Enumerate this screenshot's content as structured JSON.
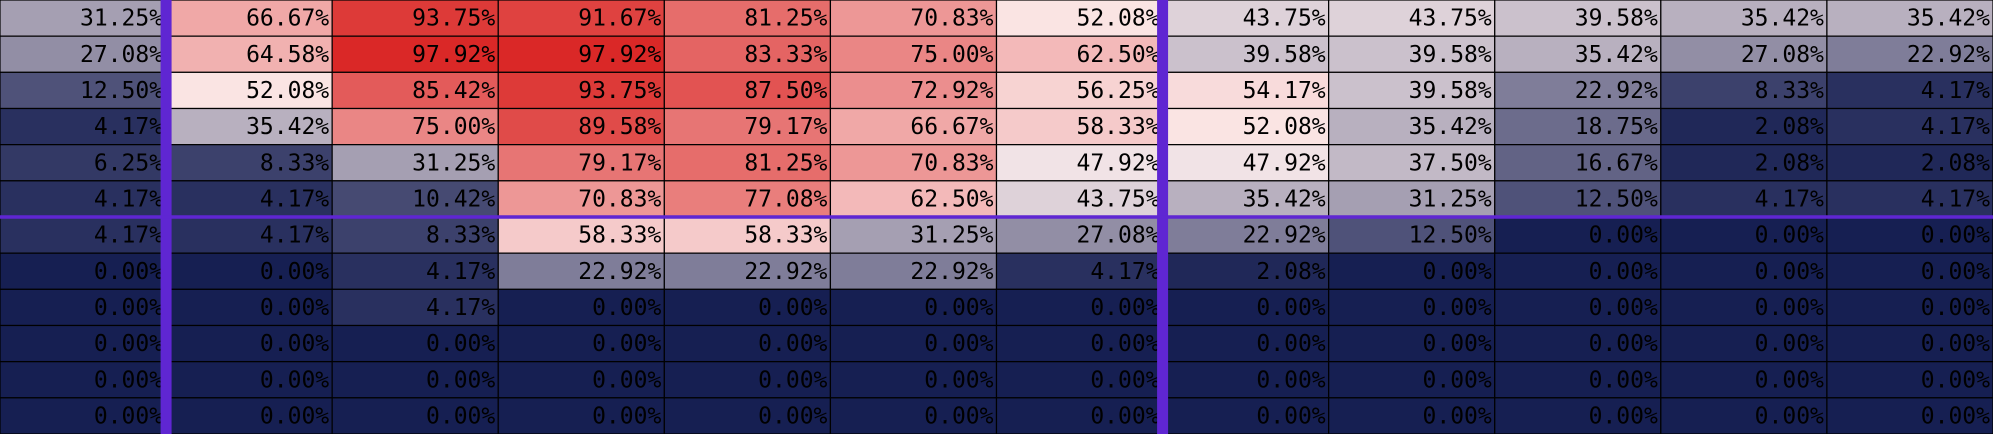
{
  "chart_data": {
    "type": "heatmap",
    "title": "",
    "xlabel": "",
    "ylabel": "",
    "value_format": "percent_2dp",
    "color_scale": {
      "low": "#161f52",
      "mid": "#fbecec",
      "high": "#d9201e",
      "mid_value": 50,
      "range": [
        0,
        100
      ]
    },
    "divider_color": "#5f26d2",
    "cell_border_color": "#000000",
    "text_color": "#000000",
    "dividers": {
      "after_columns": [
        1,
        7
      ],
      "after_rows": [
        6
      ]
    },
    "values": [
      [
        31.25,
        66.67,
        93.75,
        91.67,
        81.25,
        70.83,
        52.08,
        43.75,
        43.75,
        39.58,
        35.42,
        35.42
      ],
      [
        27.08,
        64.58,
        97.92,
        97.92,
        83.33,
        75.0,
        62.5,
        39.58,
        39.58,
        35.42,
        27.08,
        22.92
      ],
      [
        12.5,
        52.08,
        85.42,
        93.75,
        87.5,
        72.92,
        56.25,
        54.17,
        39.58,
        22.92,
        8.33,
        4.17
      ],
      [
        4.17,
        35.42,
        75.0,
        89.58,
        79.17,
        66.67,
        58.33,
        52.08,
        35.42,
        18.75,
        2.08,
        4.17
      ],
      [
        6.25,
        8.33,
        31.25,
        79.17,
        81.25,
        70.83,
        47.92,
        47.92,
        37.5,
        16.67,
        2.08,
        2.08
      ],
      [
        4.17,
        4.17,
        10.42,
        70.83,
        77.08,
        62.5,
        43.75,
        35.42,
        31.25,
        12.5,
        4.17,
        4.17
      ],
      [
        4.17,
        4.17,
        8.33,
        58.33,
        58.33,
        31.25,
        27.08,
        22.92,
        12.5,
        0.0,
        0.0,
        0.0
      ],
      [
        0.0,
        0.0,
        4.17,
        22.92,
        22.92,
        22.92,
        4.17,
        2.08,
        0.0,
        0.0,
        0.0,
        0.0
      ],
      [
        0.0,
        0.0,
        4.17,
        0.0,
        0.0,
        0.0,
        0.0,
        0.0,
        0.0,
        0.0,
        0.0,
        0.0
      ],
      [
        0.0,
        0.0,
        0.0,
        0.0,
        0.0,
        0.0,
        0.0,
        0.0,
        0.0,
        0.0,
        0.0,
        0.0
      ],
      [
        0.0,
        0.0,
        0.0,
        0.0,
        0.0,
        0.0,
        0.0,
        0.0,
        0.0,
        0.0,
        0.0,
        0.0
      ],
      [
        0.0,
        0.0,
        0.0,
        0.0,
        0.0,
        0.0,
        0.0,
        0.0,
        0.0,
        0.0,
        0.0,
        0.0
      ]
    ]
  }
}
